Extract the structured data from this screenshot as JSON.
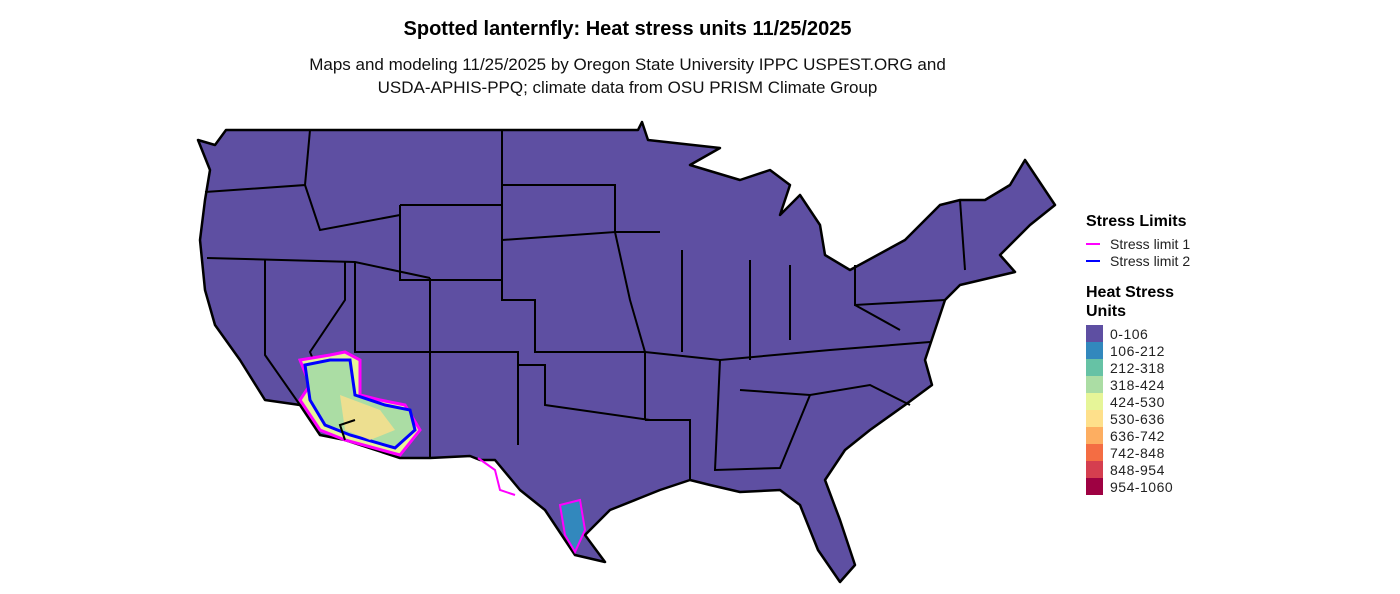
{
  "title": "Spotted lanternfly: Heat stress units 11/25/2025",
  "subtitle_line1": "Maps and modeling 11/25/2025 by Oregon State University IPPC USPEST.ORG and",
  "subtitle_line2": "USDA-APHIS-PPQ; climate data from OSU PRISM Climate Group",
  "map": {
    "base_fill": "#5e4fa2",
    "border_color": "#000000"
  },
  "legend": {
    "stress_title": "Stress Limits",
    "stress_items": [
      {
        "label": "Stress limit 1",
        "color": "#ff00ff"
      },
      {
        "label": "Stress limit 2",
        "color": "#0000ff"
      }
    ],
    "heat_title_line1": "Heat Stress",
    "heat_title_line2": "Units",
    "heat_items": [
      {
        "label": "0-106",
        "color": "#5e4fa2"
      },
      {
        "label": "106-212",
        "color": "#3288bd"
      },
      {
        "label": "212-318",
        "color": "#66c2a5"
      },
      {
        "label": "318-424",
        "color": "#abdda4"
      },
      {
        "label": "424-530",
        "color": "#e6f598"
      },
      {
        "label": "530-636",
        "color": "#fee08b"
      },
      {
        "label": "636-742",
        "color": "#fdae61"
      },
      {
        "label": "742-848",
        "color": "#f46d43"
      },
      {
        "label": "848-954",
        "color": "#d53e4f"
      },
      {
        "label": "954-1060",
        "color": "#9e0142"
      }
    ]
  }
}
